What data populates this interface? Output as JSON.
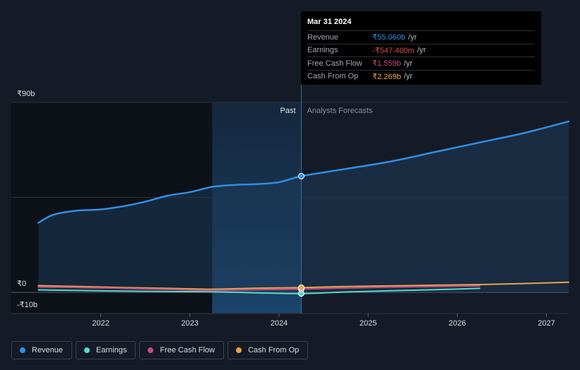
{
  "chart_data": {
    "type": "area",
    "y_unit": "₹",
    "ylim": [
      -10,
      90
    ],
    "y_tick_labels": [
      "₹90b",
      "₹0",
      "-₹10b"
    ],
    "x_tick_labels": [
      "2022",
      "2023",
      "2024",
      "2025",
      "2026",
      "2027"
    ],
    "x_tick_values": [
      2022,
      2023,
      2024,
      2025,
      2026,
      2027
    ],
    "xlim": [
      2021.25,
      2027.25
    ],
    "past_region_start": 2023.25,
    "divider_x": 2024.25,
    "past_label": "Past",
    "forecast_label": "Analysts Forecasts",
    "series": [
      {
        "name": "Revenue",
        "color": "#2f8fe6",
        "points": [
          [
            2021.3,
            33
          ],
          [
            2021.45,
            36.5
          ],
          [
            2021.6,
            38
          ],
          [
            2021.75,
            38.8
          ],
          [
            2022,
            39.3
          ],
          [
            2022.25,
            40.8
          ],
          [
            2022.5,
            43
          ],
          [
            2022.75,
            45.8
          ],
          [
            2023,
            47.5
          ],
          [
            2023.25,
            50
          ],
          [
            2023.5,
            50.9
          ],
          [
            2023.75,
            51.3
          ],
          [
            2024,
            52.2
          ],
          [
            2024.25,
            55.06
          ],
          [
            2024.75,
            58.5
          ],
          [
            2025.25,
            62
          ],
          [
            2025.75,
            66.5
          ],
          [
            2026.25,
            71
          ],
          [
            2026.75,
            75.5
          ],
          [
            2027.25,
            81
          ]
        ]
      },
      {
        "name": "Earnings",
        "color": "#57d9c8",
        "points": [
          [
            2021.3,
            1.2
          ],
          [
            2021.75,
            0.9
          ],
          [
            2022.25,
            0.6
          ],
          [
            2022.75,
            0.4
          ],
          [
            2023.25,
            0.3
          ],
          [
            2023.75,
            -0.2
          ],
          [
            2024.25,
            -0.55
          ],
          [
            2024.75,
            0.2
          ],
          [
            2025.25,
            0.8
          ],
          [
            2025.75,
            1.3
          ],
          [
            2026.25,
            1.9
          ]
        ]
      },
      {
        "name": "Free Cash Flow",
        "color": "#c94b80",
        "points": [
          [
            2021.3,
            2.6
          ],
          [
            2021.75,
            2.3
          ],
          [
            2022.25,
            1.9
          ],
          [
            2022.75,
            1.4
          ],
          [
            2023.25,
            1.0
          ],
          [
            2023.75,
            1.3
          ],
          [
            2024.25,
            1.56
          ],
          [
            2024.75,
            2.1
          ],
          [
            2025.25,
            2.5
          ],
          [
            2025.75,
            2.8
          ],
          [
            2026.25,
            3.1
          ]
        ]
      },
      {
        "name": "Cash From Op",
        "color": "#e9a450",
        "points": [
          [
            2021.3,
            3.2
          ],
          [
            2021.75,
            2.8
          ],
          [
            2022.25,
            2.3
          ],
          [
            2022.75,
            1.9
          ],
          [
            2023.25,
            1.5
          ],
          [
            2023.75,
            2.0
          ],
          [
            2024.25,
            2.27
          ],
          [
            2024.75,
            2.8
          ],
          [
            2025.25,
            3.1
          ],
          [
            2025.75,
            3.4
          ],
          [
            2026.25,
            3.7
          ],
          [
            2026.75,
            4.2
          ],
          [
            2027.25,
            4.8
          ]
        ]
      }
    ]
  },
  "tooltip": {
    "date": "Mar 31 2024",
    "rows": [
      {
        "label": "Revenue",
        "value": "₹55.060b",
        "unit": "/yr",
        "color": "#2f8fe6"
      },
      {
        "label": "Earnings",
        "value": "-₹547.400m",
        "unit": "/yr",
        "color": "#e14b4b"
      },
      {
        "label": "Free Cash Flow",
        "value": "₹1.559b",
        "unit": "/yr",
        "color": "#c94b80"
      },
      {
        "label": "Cash From Op",
        "value": "₹2.269b",
        "unit": "/yr",
        "color": "#e9a450"
      }
    ]
  },
  "legend": [
    {
      "label": "Revenue",
      "color": "#2f8fe6"
    },
    {
      "label": "Earnings",
      "color": "#57d9c8"
    },
    {
      "label": "Free Cash Flow",
      "color": "#c94b80"
    },
    {
      "label": "Cash From Op",
      "color": "#e9a450"
    }
  ]
}
